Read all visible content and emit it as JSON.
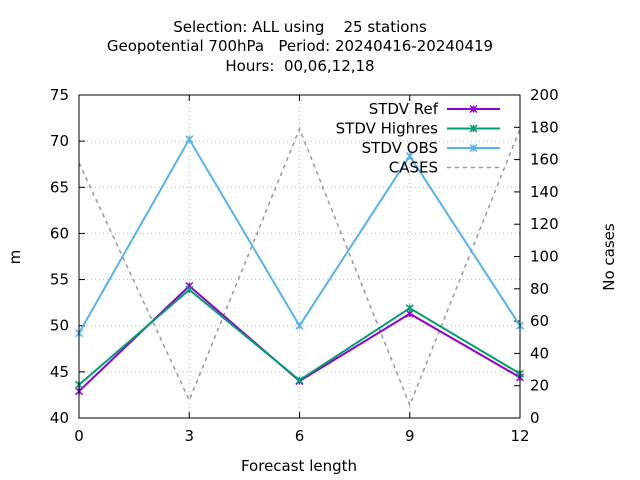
{
  "chart_data": {
    "type": "line",
    "title_lines": [
      "Selection: ALL using    25 stations",
      "Geopotential 700hPa   Period: 20240416-20240419",
      "Hours:  00,06,12,18"
    ],
    "xlabel": "Forecast length",
    "ylabel": "m",
    "y2label": "No cases",
    "x": [
      0,
      3,
      6,
      9,
      12
    ],
    "xlim": [
      0,
      12
    ],
    "ylim": [
      40,
      75
    ],
    "y2lim": [
      0,
      200
    ],
    "xticks": [
      0,
      3,
      6,
      9,
      12
    ],
    "yticks": [
      40,
      45,
      50,
      55,
      60,
      65,
      70,
      75
    ],
    "y2ticks": [
      0,
      20,
      40,
      60,
      80,
      100,
      120,
      140,
      160,
      180,
      200
    ],
    "legend_position": "top-right",
    "grid": true,
    "series": [
      {
        "name": "STDV Ref",
        "axis": "y",
        "style": "solid",
        "marker": "x",
        "color": "#9400d3",
        "values": [
          42.9,
          54.3,
          44.0,
          51.3,
          44.4
        ]
      },
      {
        "name": "STDV Highres",
        "axis": "y",
        "style": "solid",
        "marker": "x",
        "color": "#009e73",
        "values": [
          43.6,
          53.9,
          44.1,
          51.9,
          44.8
        ]
      },
      {
        "name": "STDV OBS",
        "axis": "y",
        "style": "solid",
        "marker": "x",
        "color": "#56b4e9",
        "values": [
          49.2,
          70.2,
          50.0,
          68.4,
          50.0
        ]
      },
      {
        "name": "CASES",
        "axis": "y2",
        "style": "dashed",
        "marker": "none",
        "color": "#999999",
        "values": [
          158,
          11,
          179,
          8,
          179
        ]
      }
    ]
  }
}
